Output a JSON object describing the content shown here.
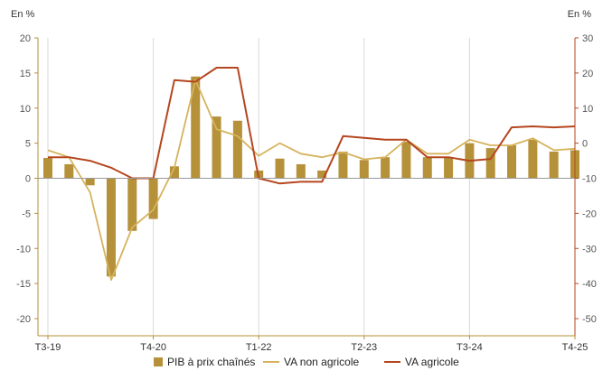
{
  "chart_data": {
    "type": "bar-line-combo",
    "left_axis_unit": "En %",
    "right_axis_unit": "En %",
    "left_ylim": [
      -20,
      20
    ],
    "left_ticks": [
      -20,
      -15,
      -10,
      -5,
      0,
      5,
      10,
      15,
      20
    ],
    "right_ylim": [
      -50,
      30
    ],
    "right_ticks": [
      -50,
      -40,
      -30,
      -20,
      -10,
      0,
      10,
      20,
      30
    ],
    "x_tick_labels": [
      {
        "label": "T3-19",
        "index": 0
      },
      {
        "label": "T4-20",
        "index": 5
      },
      {
        "label": "T1-22",
        "index": 10
      },
      {
        "label": "T2-23",
        "index": 15
      },
      {
        "label": "T3-24",
        "index": 20
      },
      {
        "label": "T4-25",
        "index": 25
      }
    ],
    "n_periods": 26,
    "grid": "vertical-only",
    "legend_position": "bottom",
    "series": [
      {
        "name": "PIB à prix chaînés",
        "kind": "bar",
        "axis": "left",
        "color": "#b5913a",
        "values": [
          2.9,
          2.0,
          -1.0,
          -14.0,
          -7.5,
          -5.8,
          1.7,
          14.5,
          8.8,
          8.2,
          1.1,
          2.8,
          2.0,
          1.1,
          3.8,
          2.6,
          3.0,
          5.2,
          3.0,
          3.0,
          5.0,
          4.3,
          4.7,
          5.5,
          3.8,
          4.0
        ]
      },
      {
        "name": "VA non agricole",
        "kind": "line",
        "axis": "left",
        "color": "#d6b35e",
        "values": [
          4.0,
          3.0,
          -2.0,
          -14.5,
          -7.0,
          -4.5,
          1.5,
          14.0,
          7.0,
          6.0,
          3.2,
          5.0,
          3.5,
          3.0,
          3.7,
          2.7,
          3.0,
          5.5,
          3.5,
          3.5,
          5.5,
          4.7,
          4.7,
          5.7,
          4.0,
          4.2
        ]
      },
      {
        "name": "VA agricole",
        "kind": "line",
        "axis": "right",
        "color": "#b5461f",
        "values": [
          -4,
          -4,
          -5,
          -7,
          -10,
          -10,
          18,
          17.5,
          21.5,
          21.5,
          -10,
          -11.5,
          -11,
          -11,
          2,
          1.5,
          1,
          1,
          -4,
          -4,
          -5,
          -4.5,
          4.5,
          4.8,
          4.5,
          4.8
        ]
      }
    ]
  }
}
